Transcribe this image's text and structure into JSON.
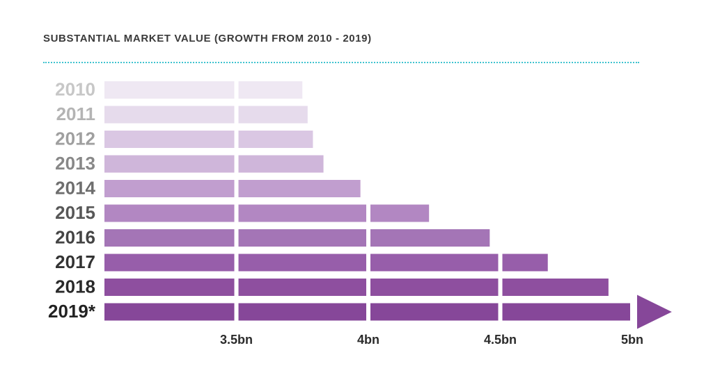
{
  "chart_data": {
    "type": "bar",
    "orientation": "horizontal",
    "title": "SUBSTANTIAL MARKET VALUE (GROWTH FROM 2010 - 2019)",
    "categories": [
      "2010",
      "2011",
      "2012",
      "2013",
      "2014",
      "2015",
      "2016",
      "2017",
      "2018",
      "2019*"
    ],
    "values": [
      3.75,
      3.77,
      3.79,
      3.83,
      3.97,
      4.23,
      4.46,
      4.68,
      4.91,
      5.15
    ],
    "x_ticks": [
      3.5,
      4,
      4.5,
      5
    ],
    "x_tick_labels": [
      "3.5bn",
      "4bn",
      "4.5bn",
      "5bn"
    ],
    "xlim": [
      3.0,
      5.15
    ],
    "units": "bn",
    "last_bar_arrow": true,
    "bar_colors": [
      "#efe8f3",
      "#e6dbec",
      "#dac7e3",
      "#cfb6da",
      "#c19ecf",
      "#b287c2",
      "#a475b6",
      "#975eaa",
      "#8e4f9f",
      "#864799"
    ],
    "label_colors": [
      "#c7c7c7",
      "#b4b4b4",
      "#9f9f9f",
      "#888888",
      "#6e6e6e",
      "#575757",
      "#444444",
      "#333333",
      "#2a2a2a",
      "#222222"
    ],
    "accent_divider": "#3ec3cf"
  }
}
